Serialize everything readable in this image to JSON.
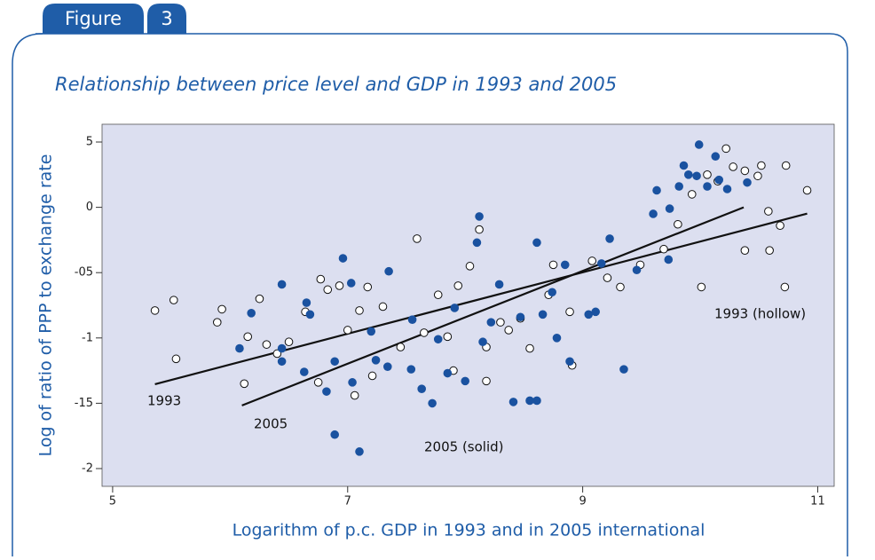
{
  "header": {
    "label": "Figure",
    "number": "3"
  },
  "chart_data": {
    "type": "scatter",
    "title": "Relationship between price level and GDP in 1993 and 2005",
    "xlabel": "Logarithm of p.c. GDP in 1993 and in 2005 international",
    "ylabel": "Log of ratio of PPP to exchange rate",
    "xlim": [
      4.91,
      11.14
    ],
    "ylim": [
      -2.136,
      0.636
    ],
    "xticks": [
      5,
      7,
      9,
      11
    ],
    "yticks": [
      {
        "value": 0.5,
        "label": "5"
      },
      0,
      {
        "value": -0.5,
        "label": "-05"
      },
      -1,
      {
        "value": -1.5,
        "label": "-15"
      },
      -2
    ],
    "series": [
      {
        "name": "1993 (hollow)",
        "color": "#ffffff",
        "stroke": "#111111",
        "x": [
          5.36,
          5.52,
          5.54,
          5.89,
          5.93,
          6.12,
          6.15,
          6.25,
          6.31,
          6.4,
          6.5,
          6.64,
          6.75,
          6.77,
          6.83,
          6.93,
          7.0,
          7.06,
          7.1,
          7.17,
          7.21,
          7.3,
          7.45,
          7.59,
          7.65,
          7.77,
          7.85,
          7.9,
          7.94,
          8.04,
          8.12,
          8.18,
          8.18,
          8.3,
          8.37,
          8.47,
          8.55,
          8.71,
          8.75,
          8.89,
          8.91,
          9.08,
          9.21,
          9.32,
          9.49,
          9.69,
          9.81,
          9.93,
          10.06,
          10.15,
          10.28,
          10.38,
          10.49,
          10.52,
          10.58,
          10.68,
          10.73,
          10.91,
          10.01,
          10.38,
          10.59,
          10.72,
          10.22
        ],
        "values": [
          -0.79,
          -0.71,
          -1.16,
          -0.88,
          -0.78,
          -1.35,
          -0.99,
          -0.7,
          -1.05,
          -1.12,
          -1.03,
          -0.8,
          -1.34,
          -0.55,
          -0.63,
          -0.6,
          -0.94,
          -1.44,
          -0.79,
          -0.61,
          -1.29,
          -0.76,
          -1.07,
          -0.24,
          -0.96,
          -0.67,
          -0.99,
          -1.25,
          -0.6,
          -0.45,
          -0.17,
          -1.07,
          -1.33,
          -0.88,
          -0.94,
          -0.85,
          -1.08,
          -0.67,
          -0.44,
          -0.8,
          -1.21,
          -0.41,
          -0.54,
          -0.61,
          -0.44,
          -0.32,
          -0.13,
          0.1,
          0.25,
          0.2,
          0.31,
          0.28,
          0.24,
          0.32,
          -0.03,
          -0.14,
          0.32,
          0.13,
          -0.61,
          -0.33,
          -0.33,
          -0.61,
          0.45
        ]
      },
      {
        "name": "2005 (solid)",
        "color": "#1a52a0",
        "stroke": "#1a52a0",
        "x": [
          6.08,
          6.18,
          6.44,
          6.44,
          6.44,
          6.65,
          6.68,
          6.63,
          6.82,
          6.89,
          6.89,
          6.96,
          7.03,
          7.04,
          7.1,
          7.2,
          7.24,
          7.34,
          7.35,
          7.54,
          7.55,
          7.63,
          7.72,
          7.77,
          7.85,
          7.91,
          8.0,
          8.1,
          8.12,
          8.15,
          8.22,
          8.29,
          8.41,
          8.47,
          8.55,
          8.61,
          8.61,
          8.66,
          8.74,
          8.78,
          8.85,
          8.89,
          9.05,
          9.16,
          9.23,
          9.35,
          9.46,
          9.6,
          9.63,
          9.74,
          9.82,
          9.86,
          9.9,
          9.97,
          9.99,
          10.06,
          10.13,
          10.16,
          10.23,
          10.4,
          9.73,
          9.11
        ],
        "values": [
          -1.08,
          -0.81,
          -1.08,
          -1.18,
          -0.59,
          -0.73,
          -0.82,
          -1.26,
          -1.41,
          -1.74,
          -1.18,
          -0.39,
          -0.58,
          -1.34,
          -1.87,
          -0.95,
          -1.17,
          -1.22,
          -0.49,
          -1.24,
          -0.86,
          -1.39,
          -1.5,
          -1.01,
          -1.27,
          -0.77,
          -1.33,
          -0.27,
          -0.07,
          -1.03,
          -0.88,
          -0.59,
          -1.49,
          -0.84,
          -1.48,
          -0.27,
          -1.48,
          -0.82,
          -0.65,
          -1.0,
          -0.44,
          -1.18,
          -0.82,
          -0.43,
          -0.24,
          -1.24,
          -0.48,
          -0.05,
          0.13,
          -0.01,
          0.16,
          0.32,
          0.25,
          0.24,
          0.48,
          0.16,
          0.39,
          0.21,
          0.14,
          0.19,
          -0.4,
          -0.8
        ]
      }
    ],
    "fit_lines": [
      {
        "name": "1993",
        "color": "#111111",
        "x": [
          5.36,
          10.91
        ],
        "values": [
          -1.354,
          -0.048
        ]
      },
      {
        "name": "2005",
        "color": "#111111",
        "x": [
          6.1,
          10.37
        ],
        "values": [
          -1.517,
          0.0
        ]
      }
    ]
  }
}
